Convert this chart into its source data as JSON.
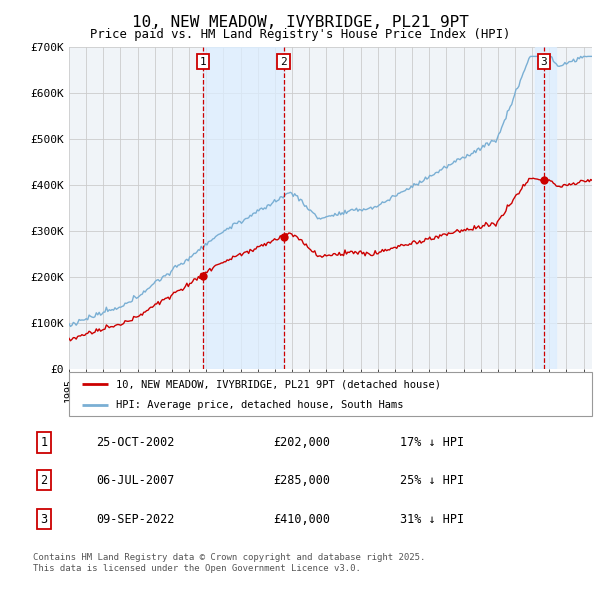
{
  "title": "10, NEW MEADOW, IVYBRIDGE, PL21 9PT",
  "subtitle": "Price paid vs. HM Land Registry's House Price Index (HPI)",
  "ylim": [
    0,
    700000
  ],
  "yticks": [
    0,
    100000,
    200000,
    300000,
    400000,
    500000,
    600000,
    700000
  ],
  "ytick_labels": [
    "£0",
    "£100K",
    "£200K",
    "£300K",
    "£400K",
    "£500K",
    "£600K",
    "£700K"
  ],
  "xmin": 1995.0,
  "xmax": 2025.5,
  "sales": [
    {
      "num": 1,
      "date_str": "25-OCT-2002",
      "year": 2002.82,
      "price": 202000,
      "pct": "17%",
      "label": "25-OCT-2002",
      "price_label": "£202,000"
    },
    {
      "num": 2,
      "date_str": "06-JUL-2007",
      "year": 2007.51,
      "price": 285000,
      "pct": "25%",
      "label": "06-JUL-2007",
      "price_label": "£285,000"
    },
    {
      "num": 3,
      "date_str": "09-SEP-2022",
      "year": 2022.69,
      "price": 410000,
      "pct": "31%",
      "label": "09-SEP-2022",
      "price_label": "£410,000"
    }
  ],
  "legend_line1": "10, NEW MEADOW, IVYBRIDGE, PL21 9PT (detached house)",
  "legend_line2": "HPI: Average price, detached house, South Hams",
  "footnote": "Contains HM Land Registry data © Crown copyright and database right 2025.\nThis data is licensed under the Open Government Licence v3.0.",
  "red_color": "#cc0000",
  "blue_color": "#7aafd4",
  "shade_color": "#ddeeff",
  "grid_color": "#cccccc",
  "bg_color": "#f0f4f8"
}
